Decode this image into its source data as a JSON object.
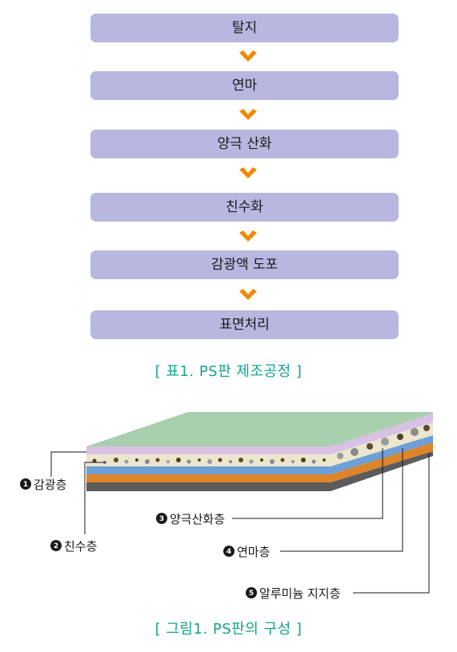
{
  "process": {
    "steps": [
      "탈지",
      "연마",
      "양극 산화",
      "친수화",
      "감광액 도포",
      "표면처리"
    ],
    "caption": "[ 표1. PS판 제조공정 ]"
  },
  "structure": {
    "layers": [
      {
        "num": "1",
        "label": "감광층"
      },
      {
        "num": "2",
        "label": "친수층"
      },
      {
        "num": "3",
        "label": "양극산화층"
      },
      {
        "num": "4",
        "label": "연마층"
      },
      {
        "num": "5",
        "label": "알루미늄 지지층"
      }
    ],
    "caption": "[ 그림1. PS판의 구성 ]"
  },
  "colors": {
    "step_box": "#b7b7e0",
    "arrow": "#f08a00",
    "caption": "#12a48c",
    "layer_top": "#a8cfae",
    "layer_photosensitive": "#d9c1e3",
    "layer_hydrophilic": "#ece6cf",
    "layer_anodized": "#6e9fd6",
    "layer_grained": "#de8428",
    "layer_aluminum": "#5c5c5c"
  }
}
